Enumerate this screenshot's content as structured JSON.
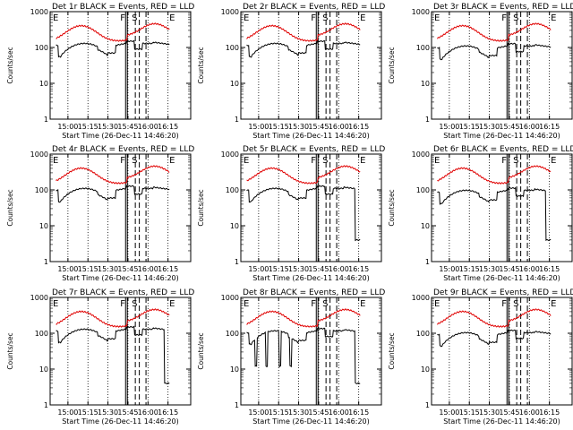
{
  "chart_data": [
    {
      "type": "line",
      "title": "Det 1r BLACK = Events, RED = LLD",
      "xlabel": "Start Time (26-Dec-11 14:46:20)",
      "ylabel": "Counts/sec",
      "y_scale": "log",
      "ylim": [
        1,
        1000
      ],
      "y_tick_labels": [
        "1",
        "10",
        "100",
        "1000"
      ],
      "x_tick_labels": [
        "15:00",
        "15:15",
        "15:30",
        "15:45",
        "16:00",
        "16:15"
      ],
      "xlim_minutes": [
        0,
        90
      ],
      "annotations": [
        "E",
        "F",
        "S",
        "E"
      ],
      "black_dips": false,
      "final_drop": false,
      "black_level": 1.0,
      "series": [
        {
          "color": "#000000"
        },
        {
          "color": "#e00000"
        }
      ]
    },
    {
      "type": "line",
      "title": "Det 2r BLACK = Events, RED = LLD",
      "xlabel": "Start Time (26-Dec-11 14:46:20)",
      "ylabel": "Counts/sec",
      "y_scale": "log",
      "ylim": [
        1,
        1000
      ],
      "y_tick_labels": [
        "1",
        "10",
        "100",
        "1000"
      ],
      "x_tick_labels": [
        "15:00",
        "15:15",
        "15:30",
        "15:45",
        "16:00",
        "16:15"
      ],
      "xlim_minutes": [
        0,
        90
      ],
      "annotations": [
        "E",
        "F",
        "S",
        "E"
      ],
      "black_dips": false,
      "final_drop": false,
      "black_level": 1.0,
      "series": [
        {
          "color": "#000000"
        },
        {
          "color": "#e00000"
        }
      ]
    },
    {
      "type": "line",
      "title": "Det 3r BLACK = Events, RED = LLD",
      "xlabel": "Start Time (26-Dec-11 14:46:20)",
      "ylabel": "Counts/sec",
      "y_scale": "log",
      "ylim": [
        1,
        1000
      ],
      "y_tick_labels": [
        "1",
        "10",
        "100",
        "1000"
      ],
      "x_tick_labels": [
        "15:00",
        "15:15",
        "15:30",
        "15:45",
        "16:00",
        "16:15"
      ],
      "xlim_minutes": [
        0,
        90
      ],
      "annotations": [
        "E",
        "F",
        "S",
        "E"
      ],
      "black_dips": false,
      "final_drop": false,
      "black_level": 0.85,
      "series": [
        {
          "color": "#000000"
        },
        {
          "color": "#e00000"
        }
      ]
    },
    {
      "type": "line",
      "title": "Det 4r BLACK = Events, RED = LLD",
      "xlabel": "Start Time (26-Dec-11 14:46:20)",
      "ylabel": "Counts/sec",
      "y_scale": "log",
      "ylim": [
        1,
        1000
      ],
      "y_tick_labels": [
        "1",
        "10",
        "100",
        "1000"
      ],
      "x_tick_labels": [
        "15:00",
        "15:15",
        "15:30",
        "15:45",
        "16:00",
        "16:15"
      ],
      "xlim_minutes": [
        0,
        90
      ],
      "annotations": [
        "E",
        "F",
        "S",
        "E"
      ],
      "black_dips": false,
      "final_drop": false,
      "black_level": 0.85,
      "series": [
        {
          "color": "#000000"
        },
        {
          "color": "#e00000"
        }
      ]
    },
    {
      "type": "line",
      "title": "Det 5r BLACK = Events, RED = LLD",
      "xlabel": "Start Time (26-Dec-11 14:46:20)",
      "ylabel": "Counts/sec",
      "y_scale": "log",
      "ylim": [
        1,
        1000
      ],
      "y_tick_labels": [
        "1",
        "10",
        "100",
        "1000"
      ],
      "x_tick_labels": [
        "15:00",
        "15:15",
        "15:30",
        "15:45",
        "16:00",
        "16:15"
      ],
      "xlim_minutes": [
        0,
        90
      ],
      "annotations": [
        "E",
        "F",
        "S",
        "E"
      ],
      "black_dips": false,
      "final_drop": true,
      "black_level": 0.85,
      "series": [
        {
          "color": "#000000"
        },
        {
          "color": "#e00000"
        }
      ]
    },
    {
      "type": "line",
      "title": "Det 6r BLACK = Events, RED = LLD",
      "xlabel": "Start Time (26-Dec-11 14:46:20)",
      "ylabel": "Counts/sec",
      "y_scale": "log",
      "ylim": [
        1,
        1000
      ],
      "y_tick_labels": [
        "1",
        "10",
        "100",
        "1000"
      ],
      "x_tick_labels": [
        "15:00",
        "15:15",
        "15:30",
        "15:45",
        "16:00",
        "16:15"
      ],
      "xlim_minutes": [
        0,
        90
      ],
      "annotations": [
        "E",
        "F",
        "S",
        "E"
      ],
      "black_dips": false,
      "final_drop": true,
      "black_level": 0.75,
      "series": [
        {
          "color": "#000000"
        },
        {
          "color": "#e00000"
        }
      ]
    },
    {
      "type": "line",
      "title": "Det 7r BLACK = Events, RED = LLD",
      "xlabel": "Start Time (26-Dec-11 14:46:20)",
      "ylabel": "Counts/sec",
      "y_scale": "log",
      "ylim": [
        1,
        1000
      ],
      "y_tick_labels": [
        "1",
        "10",
        "100",
        "1000"
      ],
      "x_tick_labels": [
        "15:00",
        "15:15",
        "15:30",
        "15:45",
        "16:00",
        "16:15"
      ],
      "xlim_minutes": [
        0,
        90
      ],
      "annotations": [
        "E",
        "F",
        "S",
        "E"
      ],
      "black_dips": false,
      "final_drop": true,
      "black_level": 1.0,
      "series": [
        {
          "color": "#000000"
        },
        {
          "color": "#e00000"
        }
      ]
    },
    {
      "type": "line",
      "title": "Det 8r BLACK = Events, RED = LLD",
      "xlabel": "Start Time (26-Dec-11 14:46:20)",
      "ylabel": "Counts/sec",
      "y_scale": "log",
      "ylim": [
        1,
        1000
      ],
      "y_tick_labels": [
        "1",
        "10",
        "100",
        "1000"
      ],
      "x_tick_labels": [
        "15:00",
        "15:15",
        "15:30",
        "15:45",
        "16:00",
        "16:15"
      ],
      "xlim_minutes": [
        0,
        90
      ],
      "annotations": [
        "E",
        "F",
        "S",
        "E"
      ],
      "black_dips": true,
      "final_drop": true,
      "black_level": 0.9,
      "series": [
        {
          "color": "#000000"
        },
        {
          "color": "#e00000"
        }
      ]
    },
    {
      "type": "line",
      "title": "Det 9r BLACK = Events, RED = LLD",
      "xlabel": "Start Time (26-Dec-11 14:46:20)",
      "ylabel": "Counts/sec",
      "y_scale": "log",
      "ylim": [
        1,
        1000
      ],
      "y_tick_labels": [
        "1",
        "10",
        "100",
        "1000"
      ],
      "x_tick_labels": [
        "15:00",
        "15:15",
        "15:30",
        "15:45",
        "16:00",
        "16:15"
      ],
      "xlim_minutes": [
        0,
        90
      ],
      "annotations": [
        "E",
        "F",
        "S",
        "E"
      ],
      "black_dips": false,
      "final_drop": false,
      "black_level": 0.8,
      "series": [
        {
          "color": "#000000"
        },
        {
          "color": "#e00000"
        }
      ]
    }
  ]
}
